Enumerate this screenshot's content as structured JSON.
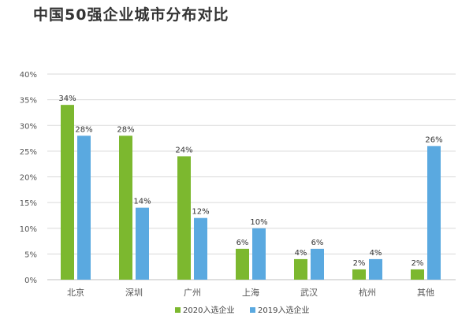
{
  "chart_data": {
    "type": "bar",
    "title": "中国50强企业城市分布对比",
    "xlabel": "",
    "ylabel": "",
    "ylim": [
      0,
      40
    ],
    "y_ticks": [
      "0%",
      "5%",
      "10%",
      "15%",
      "20%",
      "25%",
      "30%",
      "35%",
      "40%"
    ],
    "grid": true,
    "legend_position": "bottom",
    "categories": [
      "北京",
      "深圳",
      "广州",
      "上海",
      "武汉",
      "杭州",
      "其他"
    ],
    "series": [
      {
        "name": "2020入选企业",
        "color": "#7cb82f",
        "values": [
          34,
          28,
          24,
          6,
          4,
          2,
          2
        ],
        "labels": [
          "34%",
          "28%",
          "24%",
          "6%",
          "4%",
          "2%",
          "2%"
        ]
      },
      {
        "name": "2019入选企业",
        "color": "#5aa9e0",
        "values": [
          28,
          14,
          12,
          10,
          6,
          4,
          26
        ],
        "labels": [
          "28%",
          "14%",
          "12%",
          "10%",
          "6%",
          "4%",
          "26%"
        ]
      }
    ]
  }
}
